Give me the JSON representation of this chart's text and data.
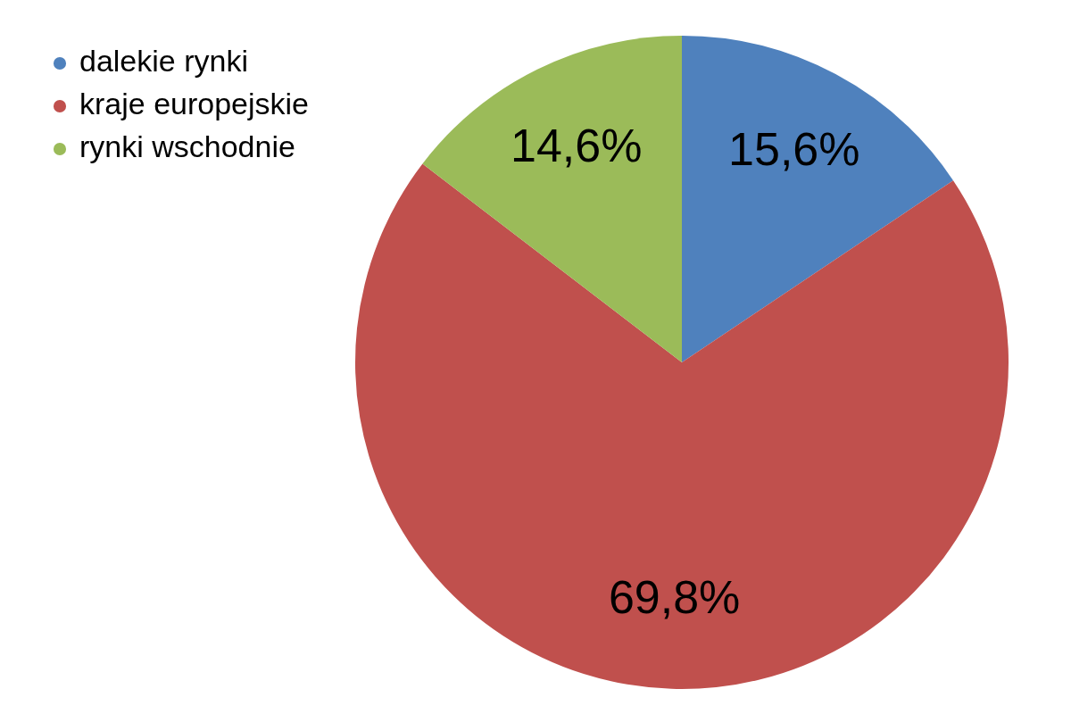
{
  "chart_data": {
    "type": "pie",
    "categories": [
      "dalekie rynki",
      "kraje europejskie",
      "rynki wschodnie"
    ],
    "values": [
      15.6,
      69.8,
      14.6
    ],
    "colors": [
      "#4f81bd",
      "#c0504d",
      "#9bbb59"
    ],
    "value_labels": [
      "15,6%",
      "69,8%",
      "14,6%"
    ],
    "legend": "top left"
  }
}
